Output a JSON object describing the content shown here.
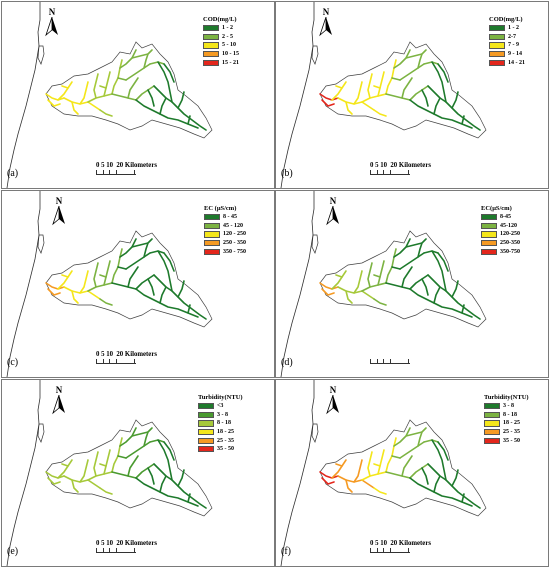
{
  "panels": [
    {
      "id": "a",
      "label": "(a)",
      "north": "N",
      "legend_title": "COD(mg/L)",
      "classes": [
        {
          "label": "1 - 2",
          "color": "#1e7a2c"
        },
        {
          "label": "2 - 5",
          "color": "#7cb342"
        },
        {
          "label": "5 - 10",
          "color": "#f4e61a"
        },
        {
          "label": "10 - 15",
          "color": "#f59a23"
        },
        {
          "label": "15 - 21",
          "color": "#e3261c"
        }
      ],
      "scale": {
        "ticks": "0  5 10",
        "text": "20 Kilometers"
      },
      "river_scheme": {
        "west": "#f4e61a",
        "mid": "#a6c93a",
        "east": "#7cb342",
        "far_east": "#1e7a2c",
        "coast": "#f4e61a"
      }
    },
    {
      "id": "b",
      "label": "(b)",
      "north": "N",
      "legend_title": "COD(mg/L)",
      "classes": [
        {
          "label": "1 - 2",
          "color": "#1e7a2c"
        },
        {
          "label": "2-7",
          "color": "#7cb342"
        },
        {
          "label": "7 - 9",
          "color": "#f4e61a"
        },
        {
          "label": "9 - 14",
          "color": "#f59a23"
        },
        {
          "label": "14 - 21",
          "color": "#e3261c"
        }
      ],
      "scale": {
        "ticks": "0  5 10",
        "text": "20 Kilometers"
      },
      "river_scheme": {
        "west": "#f4e61a",
        "mid": "#f4e61a",
        "east": "#7cb342",
        "far_east": "#1e7a2c",
        "coast": "#e3261c"
      }
    },
    {
      "id": "c",
      "label": "(c)",
      "north": "N",
      "legend_title": "EC (μS/cm)",
      "classes": [
        {
          "label": "8 - 45",
          "color": "#1e7a2c"
        },
        {
          "label": "45 - 120",
          "color": "#7cb342"
        },
        {
          "label": "120 - 250",
          "color": "#f4e61a"
        },
        {
          "label": "250 - 350",
          "color": "#f59a23"
        },
        {
          "label": "350 - 750",
          "color": "#e3261c"
        }
      ],
      "scale": {
        "ticks": "0  5 10",
        "text": "20 Kilometers"
      },
      "river_scheme": {
        "west": "#f4e61a",
        "mid": "#7cb342",
        "east": "#1e7a2c",
        "far_east": "#1e7a2c",
        "coast": "#f59a23"
      }
    },
    {
      "id": "d",
      "label": "(d)",
      "north": "N",
      "legend_title": "EC(μS/cm)",
      "classes": [
        {
          "label": "8-45",
          "color": "#1e7a2c"
        },
        {
          "label": "45-120",
          "color": "#7cb342"
        },
        {
          "label": "120-250",
          "color": "#f4e61a"
        },
        {
          "label": "250-350",
          "color": "#f59a23"
        },
        {
          "label": "350-750",
          "color": "#e3261c"
        }
      ],
      "scale": {
        "ticks": "",
        "text": ""
      },
      "river_scheme": {
        "west": "#a6c93a",
        "mid": "#7cb342",
        "east": "#1e7a2c",
        "far_east": "#1e7a2c",
        "coast": "#f59a23"
      }
    },
    {
      "id": "e",
      "label": "(e)",
      "north": "N",
      "legend_title": "Turbidity(NTU)",
      "classes": [
        {
          "label": "<3",
          "color": "#1e7a2c"
        },
        {
          "label": "3 - 8",
          "color": "#4a9a30"
        },
        {
          "label": "8 - 18",
          "color": "#a6c93a"
        },
        {
          "label": "18 - 25",
          "color": "#f4e61a"
        },
        {
          "label": "25 - 35",
          "color": "#f59a23"
        },
        {
          "label": "35 - 50",
          "color": "#e3261c"
        }
      ],
      "scale": {
        "ticks": "0  5 10",
        "text": "20 Kilometers"
      },
      "river_scheme": {
        "west": "#a6c93a",
        "mid": "#a6c93a",
        "east": "#4a9a30",
        "far_east": "#1e7a2c",
        "coast": "#a6c93a"
      }
    },
    {
      "id": "f",
      "label": "(f)",
      "north": "N",
      "legend_title": "Turbidity(NTU)",
      "classes": [
        {
          "label": "3 - 8",
          "color": "#1e7a2c"
        },
        {
          "label": "8 - 18",
          "color": "#7cb342"
        },
        {
          "label": "18 - 25",
          "color": "#f4e61a"
        },
        {
          "label": "25 - 35",
          "color": "#f59a23"
        },
        {
          "label": "35 - 50",
          "color": "#e3261c"
        }
      ],
      "scale": {
        "ticks": "0  5 10",
        "text": "20 Kilometers"
      },
      "river_scheme": {
        "west": "#f59a23",
        "mid": "#f4e61a",
        "east": "#7cb342",
        "far_east": "#1e7a2c",
        "coast": "#e3261c"
      }
    }
  ]
}
